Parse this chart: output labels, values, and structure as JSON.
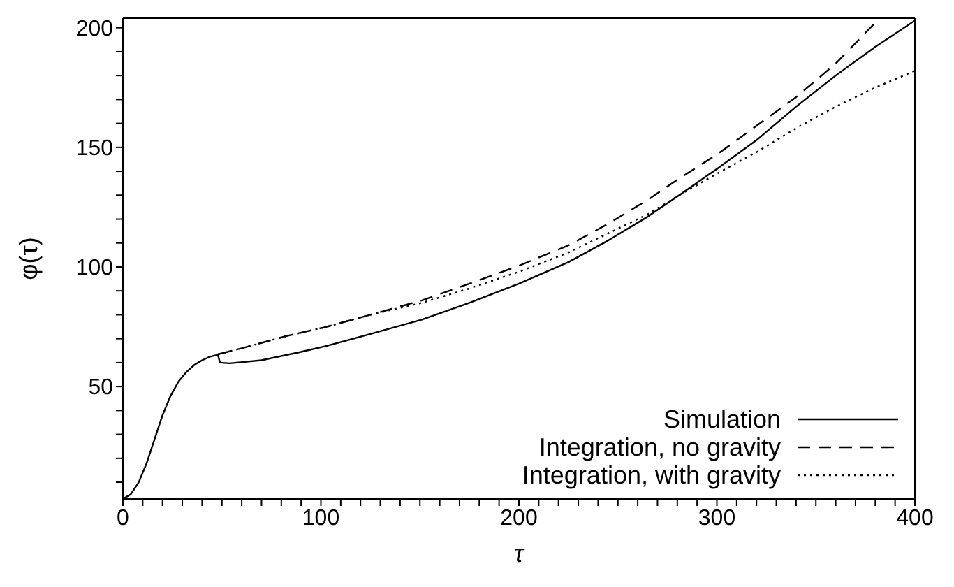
{
  "chart_data": {
    "type": "line",
    "xlabel": "τ",
    "ylabel": "φ(τ)",
    "xlim": [
      0,
      400
    ],
    "ylim": [
      3,
      204
    ],
    "xticks": [
      0,
      {
        "value": 10,
        "label": null
      },
      {
        "value": 20,
        "label": null
      },
      {
        "value": 30,
        "label": null
      },
      {
        "value": 40,
        "label": null
      },
      {
        "value": 50,
        "label": null
      },
      {
        "value": 60,
        "label": null
      },
      {
        "value": 70,
        "label": null
      },
      {
        "value": 80,
        "label": null
      },
      {
        "value": 90,
        "label": null
      },
      100,
      {
        "value": 110,
        "label": null
      },
      {
        "value": 120,
        "label": null
      },
      {
        "value": 130,
        "label": null
      },
      {
        "value": 140,
        "label": null
      },
      {
        "value": 150,
        "label": null
      },
      {
        "value": 160,
        "label": null
      },
      {
        "value": 170,
        "label": null
      },
      {
        "value": 180,
        "label": null
      },
      {
        "value": 190,
        "label": null
      },
      200,
      {
        "value": 210,
        "label": null
      },
      {
        "value": 220,
        "label": null
      },
      {
        "value": 230,
        "label": null
      },
      {
        "value": 240,
        "label": null
      },
      {
        "value": 250,
        "label": null
      },
      {
        "value": 260,
        "label": null
      },
      {
        "value": 270,
        "label": null
      },
      {
        "value": 280,
        "label": null
      },
      {
        "value": 290,
        "label": null
      },
      300,
      {
        "value": 310,
        "label": null
      },
      {
        "value": 320,
        "label": null
      },
      {
        "value": 330,
        "label": null
      },
      {
        "value": 340,
        "label": null
      },
      {
        "value": 350,
        "label": null
      },
      {
        "value": 360,
        "label": null
      },
      {
        "value": 370,
        "label": null
      },
      {
        "value": 380,
        "label": null
      },
      {
        "value": 390,
        "label": null
      },
      400
    ],
    "yticks": [
      {
        "value": 10,
        "label": null
      },
      {
        "value": 20,
        "label": null
      },
      {
        "value": 30,
        "label": null
      },
      {
        "value": 40,
        "label": null
      },
      50,
      {
        "value": 60,
        "label": null
      },
      {
        "value": 70,
        "label": null
      },
      {
        "value": 80,
        "label": null
      },
      {
        "value": 90,
        "label": null
      },
      100,
      {
        "value": 110,
        "label": null
      },
      {
        "value": 120,
        "label": null
      },
      {
        "value": 130,
        "label": null
      },
      {
        "value": 140,
        "label": null
      },
      150,
      {
        "value": 160,
        "label": null
      },
      {
        "value": 170,
        "label": null
      },
      {
        "value": 180,
        "label": null
      },
      {
        "value": 190,
        "label": null
      },
      200
    ],
    "grid": false,
    "legend": "bottom right",
    "marker": "none",
    "series": [
      {
        "name": "Simulation",
        "color": "#000000",
        "line_style": "solid",
        "x": [
          0,
          4,
          8,
          12,
          16,
          20,
          24,
          28,
          32,
          36,
          40,
          44,
          48,
          49,
          54,
          70,
          90,
          103,
          125,
          151,
          175,
          200,
          225,
          245,
          265,
          281,
          300,
          320,
          340,
          360,
          380,
          400
        ],
        "values": [
          3,
          5,
          10,
          18,
          28,
          38,
          46,
          52,
          56,
          59,
          61,
          62.5,
          63.3,
          60,
          59.7,
          61,
          64.5,
          67,
          72,
          78,
          85,
          93,
          102,
          111,
          121,
          130,
          141,
          153,
          167,
          180,
          192,
          203
        ]
      },
      {
        "name": "Integration, no gravity",
        "color": "#000000",
        "line_style": "dashed",
        "x": [
          48,
          60,
          82,
          103,
          125,
          151,
          175,
          200,
          225,
          245,
          265,
          281,
          300,
          320,
          340,
          360,
          381
        ],
        "values": [
          63.5,
          66,
          71,
          75,
          80,
          86,
          93,
          100.5,
          109,
          118,
          128,
          137,
          147,
          159,
          171,
          185,
          203
        ]
      },
      {
        "name": "Integration, with gravity",
        "color": "#000000",
        "line_style": "dotted",
        "x": [
          48,
          60,
          82,
          103,
          125,
          151,
          175,
          200,
          225,
          245,
          265,
          281,
          300,
          320,
          340,
          360,
          380,
          400
        ],
        "values": [
          63.5,
          66,
          71,
          75,
          80,
          85,
          91,
          98,
          106,
          114,
          122,
          130,
          139,
          148,
          158,
          167,
          175,
          182
        ]
      }
    ]
  }
}
